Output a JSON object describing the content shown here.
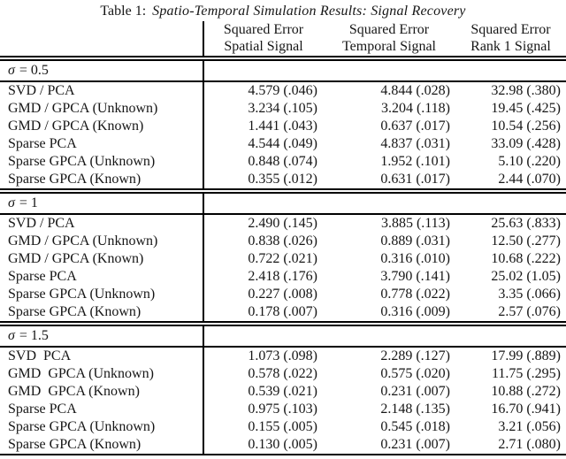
{
  "colors": {
    "background": "#ffffff",
    "text": "#161616",
    "rule": "#000000"
  },
  "title": {
    "label": "Table 1:",
    "caption": "Spatio-Temporal Simulation Results: Signal Recovery"
  },
  "table": {
    "headers": [
      {
        "line1": "Squared Error",
        "line2": "Spatial Signal"
      },
      {
        "line1": "Squared Error",
        "line2": "Temporal Signal"
      },
      {
        "line1": "Squared Error",
        "line2": "Rank 1 Signal"
      }
    ],
    "sections": [
      {
        "sigma_symbol": "σ",
        "sigma_rest": "= 0.5",
        "rows": [
          {
            "method": "SVD / PCA",
            "values": [
              "4.579 (.046)",
              "4.844 (.028)",
              "32.98 (.380)"
            ]
          },
          {
            "method": "GMD / GPCA (Unknown)",
            "values": [
              "3.234 (.105)",
              "3.204 (.118)",
              "19.45 (.425)"
            ]
          },
          {
            "method": "GMD / GPCA (Known)",
            "values": [
              "1.441 (.043)",
              "0.637 (.017)",
              "10.54 (.256)"
            ]
          },
          {
            "method": "Sparse PCA",
            "values": [
              "4.544 (.049)",
              "4.837 (.031)",
              "33.09 (.428)"
            ]
          },
          {
            "method": "Sparse GPCA (Unknown)",
            "values": [
              "0.848 (.074)",
              "1.952 (.101)",
              "5.10 (.220)"
            ]
          },
          {
            "method": "Sparse GPCA (Known)",
            "values": [
              "0.355 (.012)",
              "0.631 (.017)",
              "2.44 (.070)"
            ]
          }
        ]
      },
      {
        "sigma_symbol": "σ",
        "sigma_rest": "= 1",
        "rows": [
          {
            "method": "SVD / PCA",
            "values": [
              "2.490 (.145)",
              "3.885 (.113)",
              "25.63 (.833)"
            ]
          },
          {
            "method": "GMD / GPCA (Unknown)",
            "values": [
              "0.838 (.026)",
              "0.889 (.031)",
              "12.50 (.277)"
            ]
          },
          {
            "method": "GMD / GPCA (Known)",
            "values": [
              "0.722 (.021)",
              "0.316 (.010)",
              "10.68 (.222)"
            ]
          },
          {
            "method": "Sparse PCA",
            "values": [
              "2.418 (.176)",
              "3.790 (.141)",
              "25.02 (1.05)"
            ]
          },
          {
            "method": "Sparse GPCA (Unknown)",
            "values": [
              "0.227 (.008)",
              "0.778 (.022)",
              "3.35 (.066)"
            ]
          },
          {
            "method": "Sparse GPCA (Known)",
            "values": [
              "0.178 (.007)",
              "0.316 (.009)",
              "2.57 (.076)"
            ]
          }
        ]
      },
      {
        "sigma_symbol": "σ",
        "sigma_rest": "= 1.5",
        "rows": [
          {
            "method": "SVD  PCA",
            "values": [
              "1.073 (.098)",
              "2.289 (.127)",
              "17.99 (.889)"
            ]
          },
          {
            "method": "GMD  GPCA (Unknown)",
            "values": [
              "0.578 (.022)",
              "0.575 (.020)",
              "11.75 (.295)"
            ]
          },
          {
            "method": "GMD  GPCA (Known)",
            "values": [
              "0.539 (.021)",
              "0.231 (.007)",
              "10.88 (.272)"
            ]
          },
          {
            "method": "Sparse PCA",
            "values": [
              "0.975 (.103)",
              "2.148 (.135)",
              "16.70 (.941)"
            ]
          },
          {
            "method": "Sparse GPCA (Unknown)",
            "values": [
              "0.155 (.005)",
              "0.545 (.018)",
              "3.21 (.056)"
            ]
          },
          {
            "method": "Sparse GPCA (Known)",
            "values": [
              "0.130 (.005)",
              "0.231 (.007)",
              "2.71 (.080)"
            ]
          }
        ]
      }
    ]
  }
}
